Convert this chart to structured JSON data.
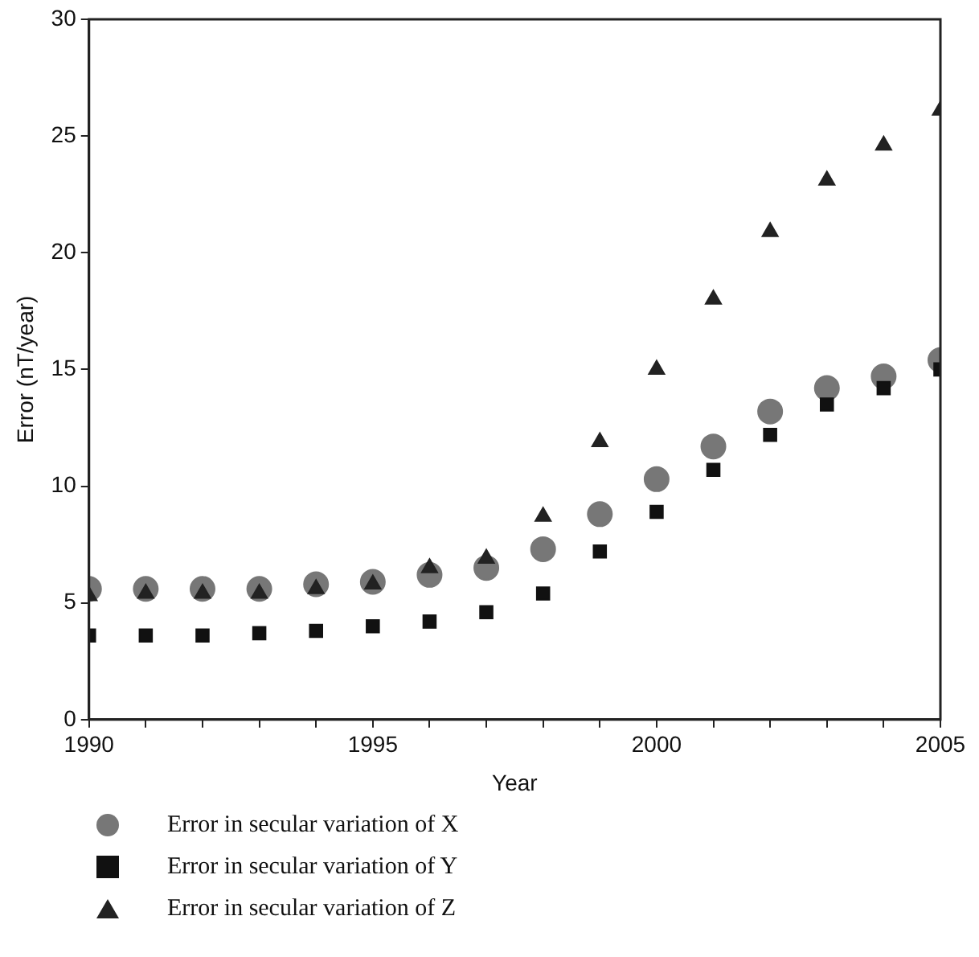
{
  "chart_data": {
    "type": "scatter",
    "xlabel": "Year",
    "ylabel": "Error (nT/year)",
    "x": [
      1990,
      1991,
      1992,
      1993,
      1994,
      1995,
      1996,
      1997,
      1998,
      1999,
      2000,
      2001,
      2002,
      2003,
      2004,
      2005
    ],
    "series": [
      {
        "name": "Error in secular variation of X",
        "color": "#777777",
        "marker": "circle",
        "values": [
          5.6,
          5.6,
          5.6,
          5.6,
          5.8,
          5.9,
          6.2,
          6.5,
          7.3,
          8.8,
          10.3,
          11.7,
          13.2,
          14.2,
          14.7,
          15.4
        ]
      },
      {
        "name": "Error in secular variation of Y",
        "color": "#111111",
        "marker": "square",
        "values": [
          3.6,
          3.6,
          3.6,
          3.7,
          3.8,
          4.0,
          4.2,
          4.6,
          5.4,
          7.2,
          8.9,
          10.7,
          12.2,
          13.5,
          14.2,
          15.0
        ]
      },
      {
        "name": "Error in secular variation of Z",
        "color": "#222222",
        "marker": "triangle",
        "values": [
          5.3,
          5.4,
          5.4,
          5.4,
          5.6,
          5.8,
          6.5,
          6.9,
          8.7,
          11.9,
          15.0,
          18.0,
          20.9,
          23.1,
          24.6,
          26.1
        ]
      }
    ],
    "xlim": [
      1990,
      2005
    ],
    "xticks": [
      1990,
      {
        "value": 1991,
        "label": null
      },
      {
        "value": 1992,
        "label": null
      },
      {
        "value": 1993,
        "label": null
      },
      {
        "value": 1994,
        "label": null
      },
      1995,
      {
        "value": 1996,
        "label": null
      },
      {
        "value": 1997,
        "label": null
      },
      {
        "value": 1998,
        "label": null
      },
      {
        "value": 1999,
        "label": null
      },
      2000,
      {
        "value": 2001,
        "label": null
      },
      {
        "value": 2002,
        "label": null
      },
      {
        "value": 2003,
        "label": null
      },
      {
        "value": 2004,
        "label": null
      },
      2005
    ],
    "ylim": [
      0,
      30
    ],
    "yticks": [
      0,
      5,
      10,
      15,
      20,
      25,
      30
    ],
    "grid": false,
    "legend": "bottom"
  }
}
